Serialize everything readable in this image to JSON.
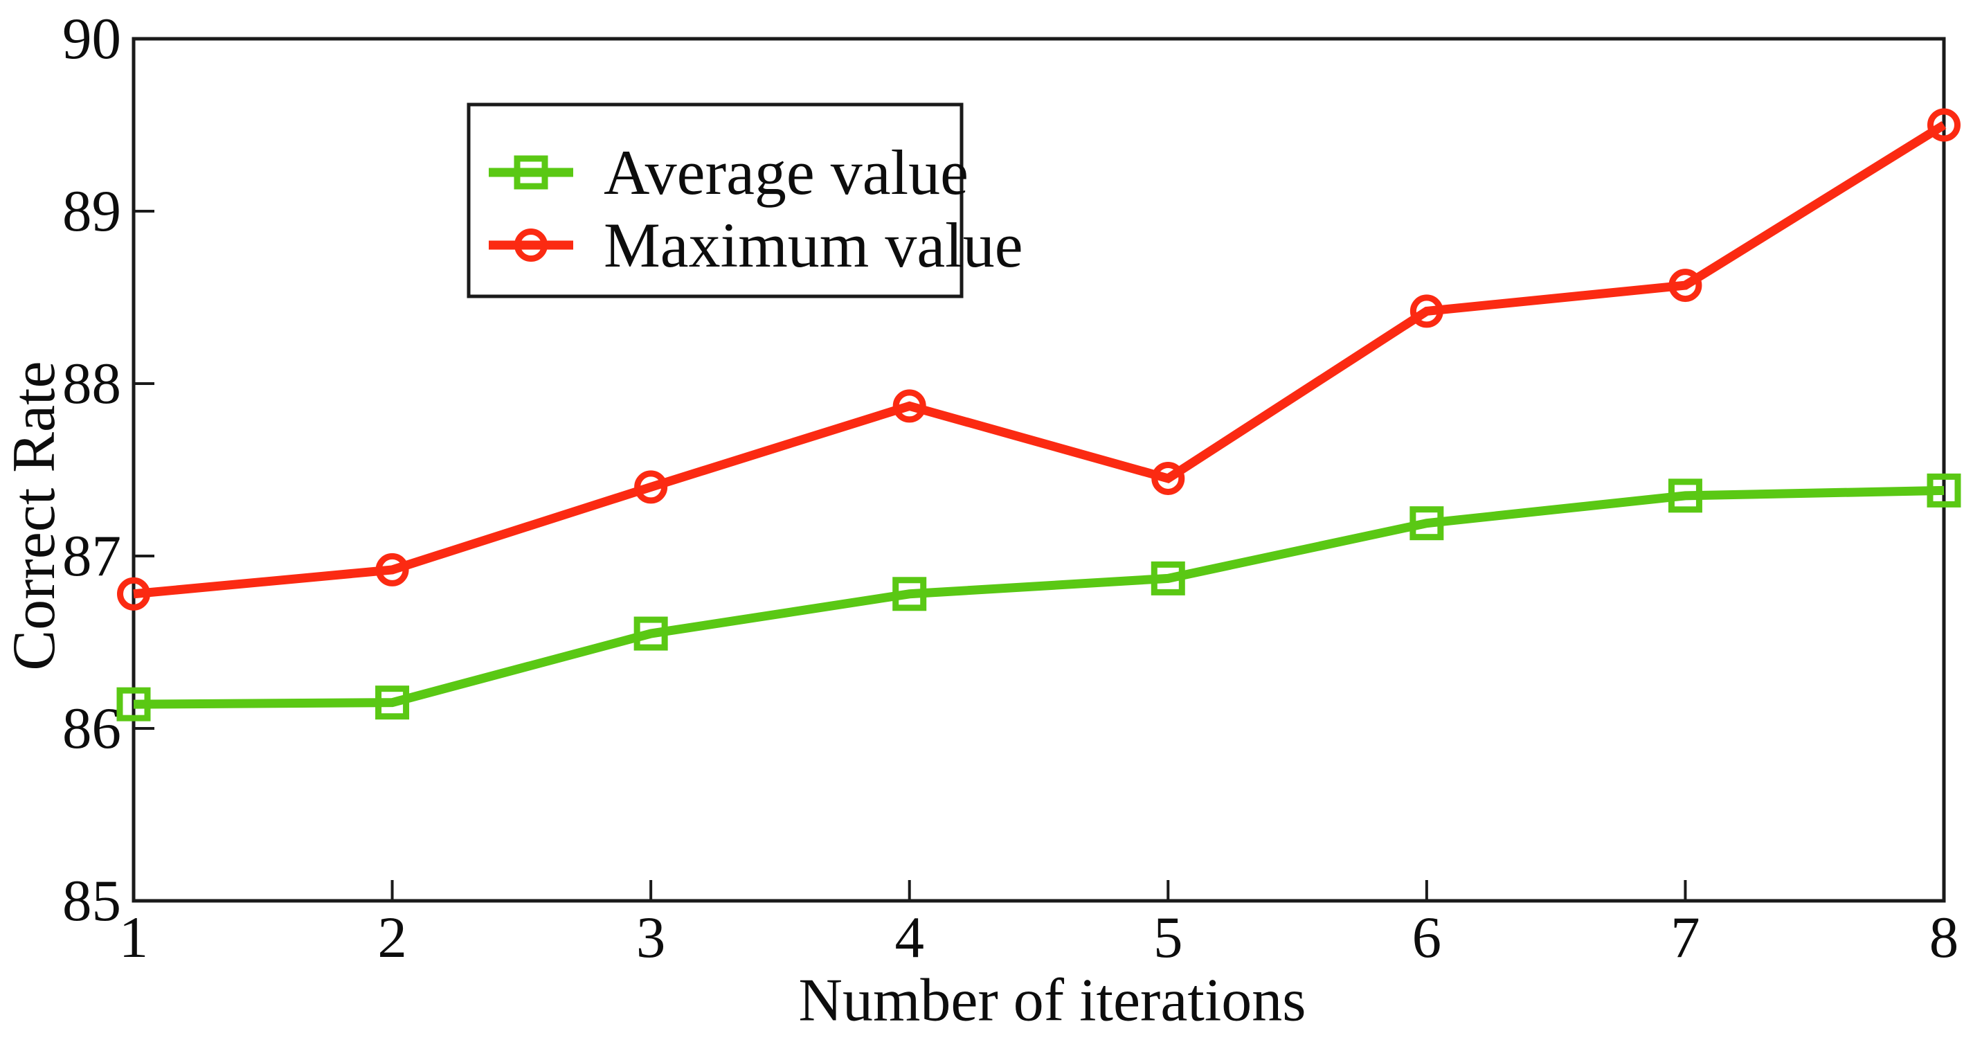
{
  "chart_data": {
    "type": "line",
    "x": [
      1,
      2,
      3,
      4,
      5,
      6,
      7,
      8
    ],
    "series": [
      {
        "name": "Average value",
        "color": "#5ac814",
        "marker": "square",
        "values": [
          86.14,
          86.15,
          86.55,
          86.78,
          86.87,
          87.19,
          87.35,
          87.38
        ]
      },
      {
        "name": "Maximum value",
        "color": "#fb2a12",
        "marker": "circle",
        "values": [
          86.78,
          86.92,
          87.4,
          87.87,
          87.45,
          88.42,
          88.57,
          89.5
        ]
      }
    ],
    "title": "",
    "xlabel": "Number of iterations",
    "ylabel": "Correct Rate",
    "xlim": [
      1,
      8
    ],
    "ylim": [
      85,
      90
    ],
    "xticks": [
      1,
      2,
      3,
      4,
      5,
      6,
      7,
      8
    ],
    "yticks": [
      85,
      86,
      87,
      88,
      89,
      90
    ],
    "grid": false,
    "legend_position": "upper-left-inside",
    "axis_color": "#1a1a1a",
    "background": "#ffffff"
  }
}
